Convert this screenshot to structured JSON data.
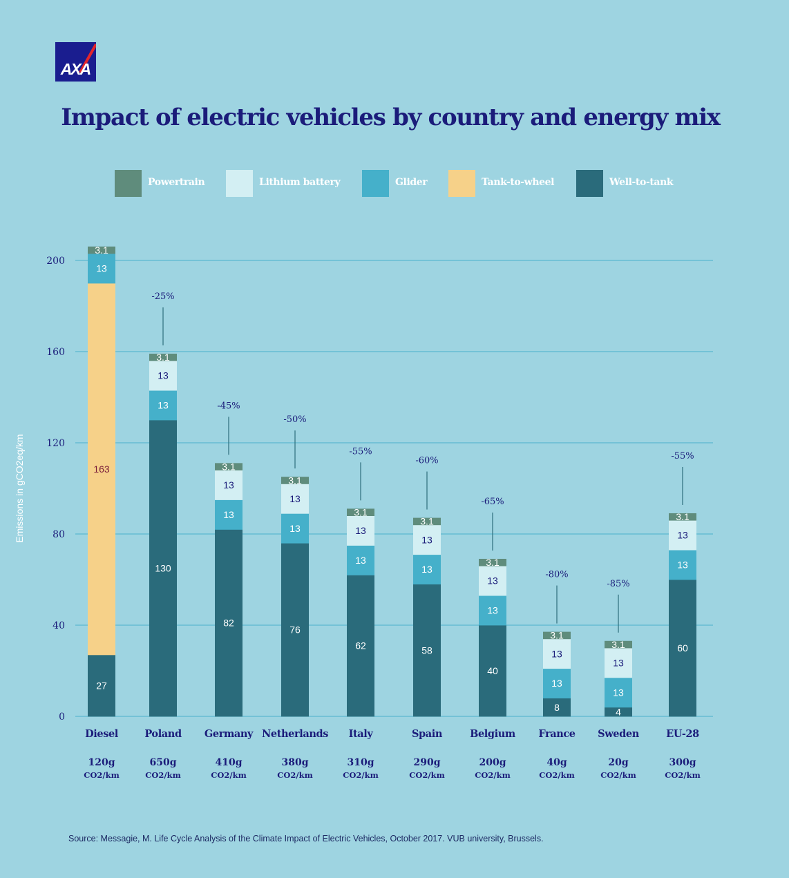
{
  "brand": {
    "logo_text": "AXA"
  },
  "title": "Impact of electric vehicles by country and energy mix",
  "colors": {
    "background": "#9ed4e1",
    "title": "#1b1c7a",
    "gridline": "#5bb8d0",
    "powertrain": "#5f8c7c",
    "lithium_battery": "#d3eff3",
    "glider": "#45b0ca",
    "tank_to_wheel": "#f6d189",
    "well_to_tank": "#2a6b7b",
    "tick_text": "#1b1c7a",
    "callout_line": "#2d6e7b"
  },
  "legend": [
    {
      "key": "powertrain",
      "label": "Powertrain"
    },
    {
      "key": "lithium_battery",
      "label": "Lithium battery"
    },
    {
      "key": "glider",
      "label": "Glider"
    },
    {
      "key": "tank_to_wheel",
      "label": "Tank-to-wheel"
    },
    {
      "key": "well_to_tank",
      "label": "Well-to-tank"
    }
  ],
  "chart_data": {
    "type": "bar",
    "stacked": true,
    "title": "Impact of electric vehicles by country and energy mix",
    "ylabel": "Emissions in gCO2eq/km",
    "ylim": [
      0,
      200
    ],
    "yticks": [
      0,
      40,
      80,
      120,
      160,
      200
    ],
    "grid": true,
    "legend_position": "top",
    "unit_label": "CO2/km",
    "categories": [
      "Diesel",
      "Poland",
      "Germany",
      "Netherlands",
      "Italy",
      "Spain",
      "Belgium",
      "France",
      "Sweden",
      "EU-28"
    ],
    "grid_intensity": [
      "120g",
      "650g",
      "410g",
      "380g",
      "310g",
      "290g",
      "200g",
      "40g",
      "20g",
      "300g"
    ],
    "reduction_labels": [
      "",
      "-25%",
      "-45%",
      "-50%",
      "-55%",
      "-60%",
      "-65%",
      "-80%",
      "-85%",
      "-55%"
    ],
    "series": [
      {
        "key": "well_to_tank",
        "name": "Well-to-tank",
        "values": [
          27,
          130,
          82,
          76,
          62,
          58,
          40,
          8,
          4,
          60
        ]
      },
      {
        "key": "tank_to_wheel",
        "name": "Tank-to-wheel",
        "values": [
          163,
          0,
          0,
          0,
          0,
          0,
          0,
          0,
          0,
          0
        ]
      },
      {
        "key": "glider",
        "name": "Glider",
        "values": [
          13,
          13,
          13,
          13,
          13,
          13,
          13,
          13,
          13,
          13
        ]
      },
      {
        "key": "lithium_battery",
        "name": "Lithium battery",
        "values": [
          0,
          13,
          13,
          13,
          13,
          13,
          13,
          13,
          13,
          13
        ]
      },
      {
        "key": "powertrain",
        "name": "Powertrain",
        "values": [
          3.1,
          3.1,
          3.1,
          3.1,
          3.1,
          3.1,
          3.1,
          3.1,
          3.1,
          3.1
        ]
      }
    ]
  },
  "source": "Source: Messagie, M. Life Cycle Analysis of the Climate Impact of Electric Vehicles, October 2017. VUB university, Brussels."
}
